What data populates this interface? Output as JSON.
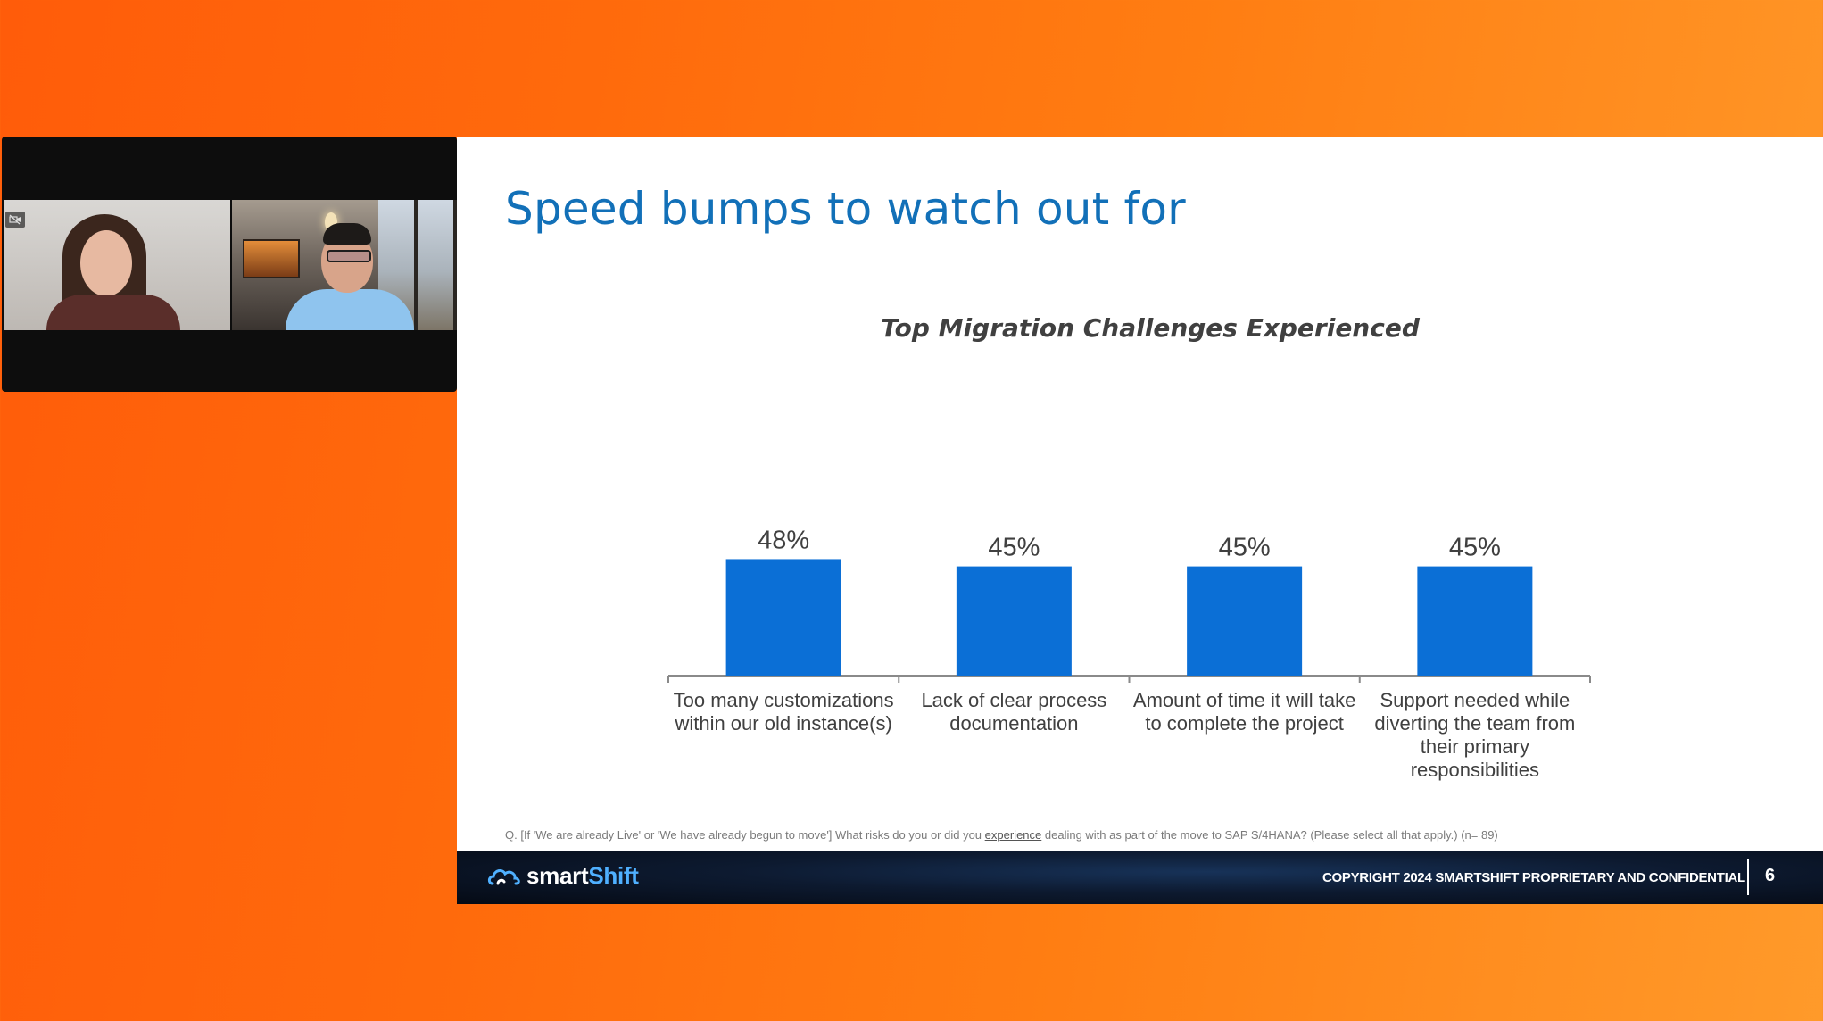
{
  "video": {
    "camera_icon": "camera-off-icon"
  },
  "slide": {
    "title": "Speed bumps to watch out for",
    "chart_title": "Top Migration Challenges Experienced",
    "footnote_before": "Q. [If 'We are already Live' or 'We have already begun to move'] What risks do you or did you ",
    "footnote_link": "experience",
    "footnote_after": " dealing with as part of the move to SAP S/4HANA? (Please select all that apply.) (n= 89)"
  },
  "footer": {
    "brand_prefix": "smart",
    "brand_suffix": "Shift",
    "copyright": "COPYRIGHT 2024 SMARTSHIFT PROPRIETARY AND CONFIDENTIAL",
    "page_number": "6"
  },
  "colors": {
    "bar": "#0b6fd6",
    "title": "#1270b8",
    "accent_orange": "#ff6a0c"
  },
  "chart_data": {
    "type": "bar",
    "title": "Top Migration Challenges Experienced",
    "categories": [
      [
        "Too many customizations",
        "within our old instance(s)"
      ],
      [
        "Lack of clear process",
        "documentation"
      ],
      [
        "Amount of time it will take",
        "to complete the project"
      ],
      [
        "Support needed while",
        "diverting the team from",
        "their primary",
        "responsibilities"
      ]
    ],
    "values": [
      48,
      45,
      45,
      45
    ],
    "value_labels": [
      "48%",
      "45%",
      "45%",
      "45%"
    ],
    "xlabel": "",
    "ylabel": "",
    "ylim": [
      0,
      100
    ],
    "grid": false,
    "legend": "none"
  }
}
